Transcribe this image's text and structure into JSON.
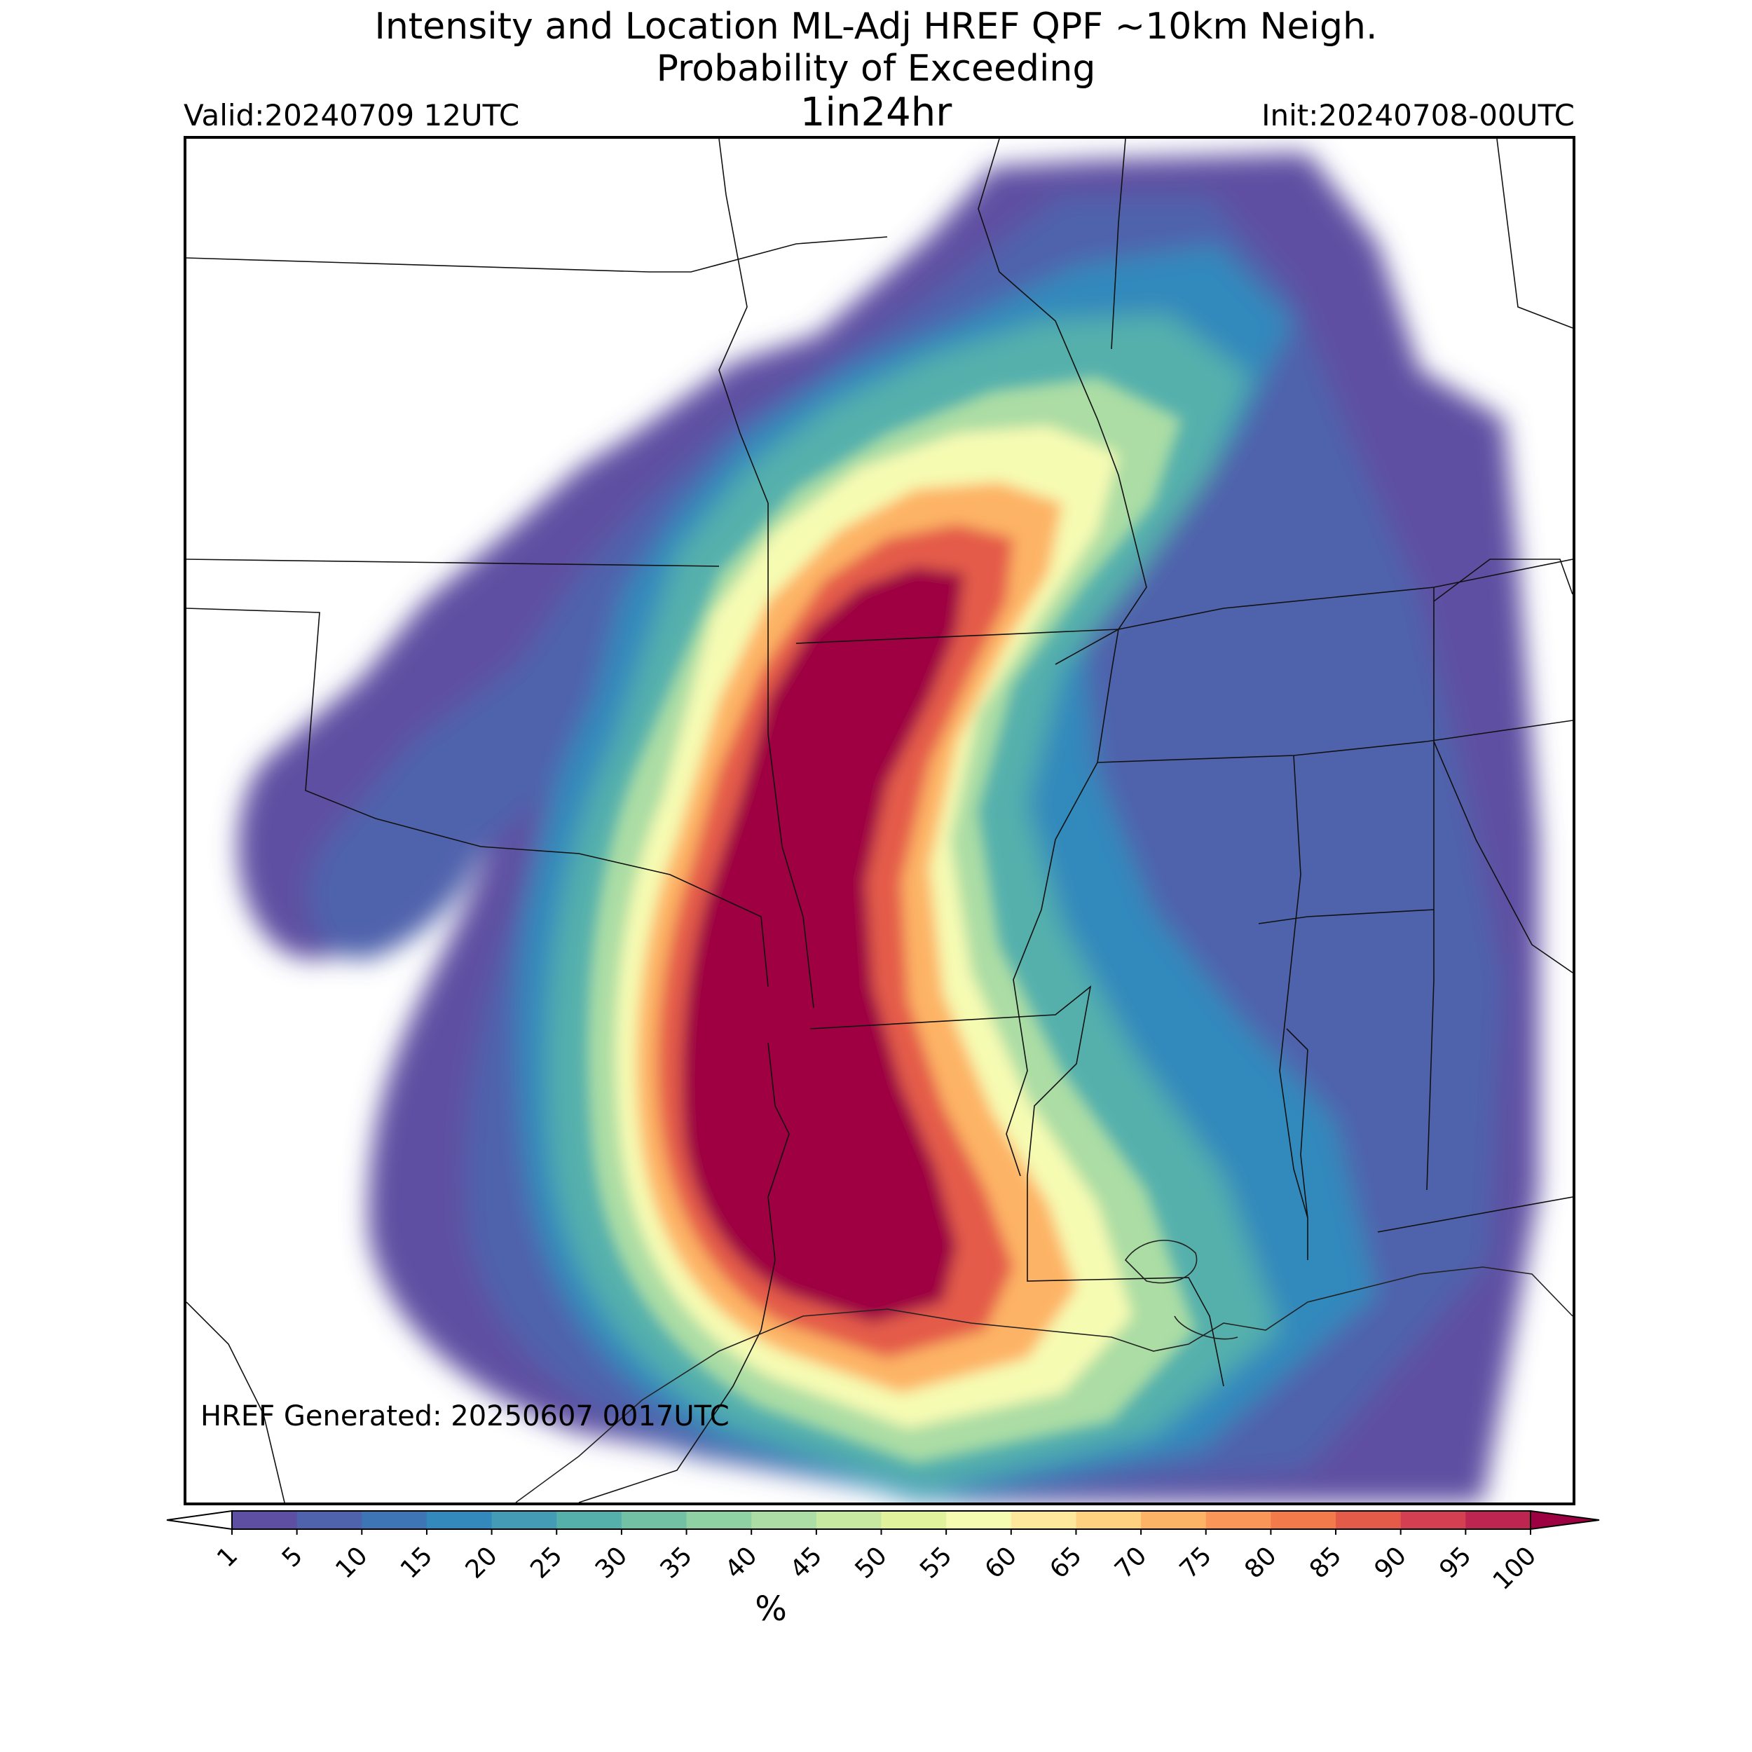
{
  "header": {
    "title_line1": "Intensity and Location ML-Adj HREF QPF ~10km Neigh.",
    "title_line2": "Probability of Exceeding",
    "title_line3": "1in24hr",
    "valid": "Valid:20240709 12UTC",
    "init": "Init:20240708-00UTC"
  },
  "map": {
    "generated_note": "HREF Generated: 20250607 0017UTC"
  },
  "colorbar": {
    "label": "%",
    "ticks": [
      "1",
      "5",
      "10",
      "15",
      "20",
      "25",
      "30",
      "35",
      "40",
      "45",
      "50",
      "55",
      "60",
      "65",
      "70",
      "75",
      "80",
      "85",
      "90",
      "95",
      "100"
    ],
    "colors": [
      "#5e4fa2",
      "#4f62ac",
      "#3e76b5",
      "#3389bc",
      "#439bb5",
      "#55b0ac",
      "#72c1a4",
      "#8fd1a3",
      "#abdda4",
      "#c6e8a0",
      "#e0f39c",
      "#f6fbb2",
      "#fee89b",
      "#fdd17f",
      "#fdb365",
      "#fa9657",
      "#f37a4a",
      "#e45c49",
      "#d44052",
      "#be2550",
      "#9e0142"
    ],
    "under_color": "#ffffff",
    "over_color": "#9e0142"
  }
}
